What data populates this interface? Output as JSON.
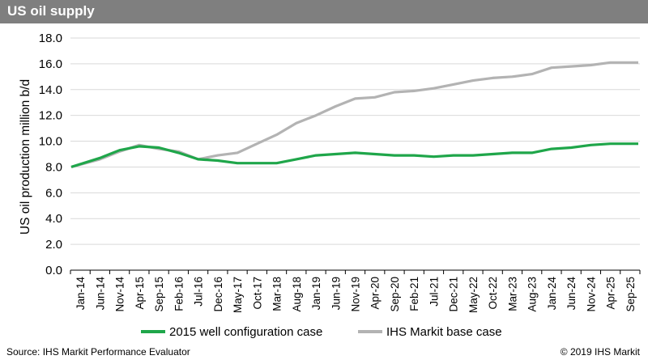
{
  "chart_data": {
    "type": "line",
    "title": "US oil supply",
    "ylabel": "US oil production million b/d",
    "xlabel": "",
    "ylim": [
      0,
      18
    ],
    "yticks": [
      "0.0",
      "2.0",
      "4.0",
      "6.0",
      "8.0",
      "10.0",
      "12.0",
      "14.0",
      "16.0",
      "18.0"
    ],
    "yticks_values": [
      0,
      2,
      4,
      6,
      8,
      10,
      12,
      14,
      16,
      18
    ],
    "categories": [
      "Jan-14",
      "Jun-14",
      "Nov-14",
      "Apr-15",
      "Sep-15",
      "Feb-16",
      "Jul-16",
      "Dec-16",
      "May-17",
      "Oct-17",
      "Mar-18",
      "Aug-18",
      "Jan-19",
      "Jun-19",
      "Nov-19",
      "Apr-20",
      "Sep-20",
      "Feb-21",
      "Jul-21",
      "Dec-21",
      "May-22",
      "Oct-22",
      "Mar-23",
      "Aug-23",
      "Jan-24",
      "Jun-24",
      "Nov-24",
      "Apr-25",
      "Sep-25"
    ],
    "grid": true,
    "legend_position": "bottom",
    "series": [
      {
        "name": "2015 well configuration case",
        "color": "#1fa64a",
        "values": [
          8.0,
          8.7,
          9.3,
          9.6,
          9.5,
          9.1,
          8.6,
          8.5,
          8.3,
          8.3,
          8.3,
          8.6,
          8.9,
          9.0,
          9.1,
          9.0,
          8.9,
          8.9,
          8.8,
          8.9,
          8.9,
          9.0,
          9.1,
          9.1,
          9.4,
          9.5,
          9.7,
          9.8,
          9.8
        ]
      },
      {
        "name": "IHS Markit base case",
        "color": "#b3b3b3",
        "values": [
          8.0,
          8.6,
          9.2,
          9.7,
          9.4,
          9.2,
          8.6,
          8.9,
          9.1,
          9.8,
          10.5,
          11.4,
          12.0,
          12.7,
          13.3,
          13.4,
          13.8,
          13.9,
          14.1,
          14.4,
          14.7,
          14.9,
          15.0,
          15.2,
          15.7,
          15.8,
          15.9,
          16.1,
          16.1
        ]
      }
    ]
  },
  "footer": {
    "source": "Source: IHS Markit Performance Evaluator",
    "copyright": "© 2019 IHS Markit"
  }
}
